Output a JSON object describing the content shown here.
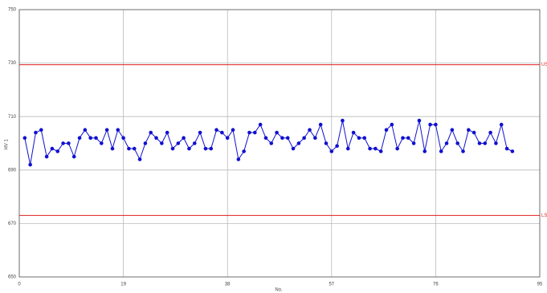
{
  "chart_data": {
    "type": "line",
    "xlabel": "No.",
    "ylabel": "HV 1",
    "x": [
      1,
      2,
      3,
      4,
      5,
      6,
      7,
      8,
      9,
      10,
      11,
      12,
      13,
      14,
      15,
      16,
      17,
      18,
      19,
      20,
      21,
      22,
      23,
      24,
      25,
      26,
      27,
      28,
      29,
      30,
      31,
      32,
      33,
      34,
      35,
      36,
      37,
      38,
      39,
      40,
      41,
      42,
      43,
      44,
      45,
      46,
      47,
      48,
      49,
      50,
      51,
      52,
      53,
      54,
      55,
      56,
      57,
      58,
      59,
      60,
      61,
      62,
      63,
      64,
      65,
      66,
      67,
      68,
      69,
      70,
      71,
      72,
      73,
      74,
      75,
      76,
      77,
      78,
      79,
      80,
      81,
      82,
      83,
      84,
      85,
      86,
      87,
      88,
      89,
      90
    ],
    "values": [
      702,
      692,
      704,
      705,
      695,
      698,
      697,
      700,
      700,
      695,
      702,
      705,
      702,
      702,
      700,
      705,
      698,
      705,
      702,
      698,
      698,
      694,
      700,
      704,
      702,
      700,
      704,
      698,
      700,
      702,
      698,
      700,
      704,
      698,
      698,
      705,
      704,
      702,
      705,
      694,
      697,
      704,
      704,
      707,
      702,
      700,
      704,
      702,
      702,
      698,
      700,
      702,
      705,
      702,
      707,
      700,
      697,
      699,
      708.5,
      698,
      704,
      702,
      702,
      698,
      698,
      697,
      705,
      707,
      698,
      702,
      702,
      700,
      708.5,
      697,
      707,
      707,
      697,
      700,
      705,
      700,
      697,
      705,
      704,
      700,
      700,
      704,
      700,
      707,
      698,
      697
    ],
    "color": "#1010d0",
    "limits": [
      {
        "label": "USL",
        "value": 729.4,
        "color": "#e02020"
      },
      {
        "label": "LSL",
        "value": 673,
        "color": "#e02020"
      }
    ],
    "xlim": [
      0,
      95
    ],
    "xticks": [
      0,
      19,
      38,
      57,
      76,
      95
    ],
    "ylim": [
      650,
      750
    ],
    "yticks": [
      650,
      670,
      690,
      710,
      730,
      750
    ],
    "grid": true
  }
}
